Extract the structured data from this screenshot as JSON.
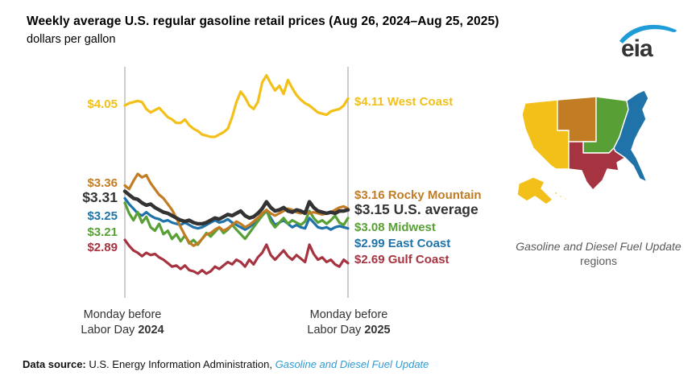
{
  "header": {
    "title": "Weekly average U.S. regular gasoline retail prices (Aug 26, 2024–Aug 25, 2025)",
    "subtitle": "dollars per gallon",
    "logo_text": "eia",
    "logo_swoosh_color": "#1e9cd7",
    "logo_text_color": "#333333"
  },
  "chart_data": {
    "type": "line",
    "title": "Weekly average U.S. regular gasoline retail prices (Aug 26, 2024–Aug 25, 2025)",
    "ylabel": "dollars per gallon",
    "ylim": [
      2.4,
      4.4
    ],
    "grid": false,
    "legend_position": "line-end-labels",
    "x_axis": {
      "left": {
        "line1": "Monday before",
        "line2": "Labor Day",
        "year": "2024"
      },
      "right": {
        "line1": "Monday before",
        "line2": "Labor Day",
        "year": "2025"
      }
    },
    "series": [
      {
        "name": "West Coast",
        "color": "#f2c018",
        "start_label": "$4.05",
        "end_label": "$4.11",
        "emphasis": false,
        "values": [
          4.05,
          4.07,
          4.08,
          4.09,
          4.08,
          4.02,
          3.99,
          4.01,
          4.03,
          3.99,
          3.95,
          3.93,
          3.9,
          3.9,
          3.93,
          3.88,
          3.85,
          3.83,
          3.8,
          3.79,
          3.78,
          3.78,
          3.8,
          3.82,
          3.85,
          3.95,
          4.08,
          4.17,
          4.12,
          4.05,
          4.02,
          4.08,
          4.25,
          4.31,
          4.24,
          4.18,
          4.22,
          4.15,
          4.27,
          4.2,
          4.14,
          4.1,
          4.07,
          4.05,
          4.02,
          3.99,
          3.98,
          3.97,
          4.0,
          4.01,
          4.02,
          4.05,
          4.11
        ]
      },
      {
        "name": "Rocky Mountain",
        "color": "#c17c24",
        "start_label": "$3.36",
        "end_label": "$3.16",
        "emphasis": false,
        "values": [
          3.36,
          3.33,
          3.4,
          3.46,
          3.43,
          3.45,
          3.38,
          3.33,
          3.28,
          3.25,
          3.2,
          3.15,
          3.08,
          3.0,
          2.93,
          2.87,
          2.84,
          2.86,
          2.9,
          2.94,
          2.95,
          2.98,
          3.0,
          2.97,
          2.99,
          3.02,
          3.05,
          3.03,
          3.0,
          3.02,
          3.05,
          3.08,
          3.12,
          3.15,
          3.12,
          3.1,
          3.12,
          3.14,
          3.16,
          3.15,
          3.13,
          3.12,
          3.14,
          3.12,
          3.13,
          3.12,
          3.11,
          3.12,
          3.13,
          3.15,
          3.17,
          3.18,
          3.16
        ]
      },
      {
        "name": "U.S. average",
        "color": "#333333",
        "start_label": "$3.31",
        "end_label": "$3.15",
        "emphasis": true,
        "values": [
          3.31,
          3.28,
          3.25,
          3.24,
          3.21,
          3.19,
          3.2,
          3.17,
          3.15,
          3.13,
          3.12,
          3.1,
          3.08,
          3.06,
          3.05,
          3.06,
          3.04,
          3.03,
          3.03,
          3.04,
          3.06,
          3.08,
          3.07,
          3.09,
          3.11,
          3.1,
          3.12,
          3.14,
          3.1,
          3.08,
          3.09,
          3.12,
          3.16,
          3.22,
          3.17,
          3.14,
          3.15,
          3.17,
          3.14,
          3.13,
          3.15,
          3.14,
          3.12,
          3.22,
          3.17,
          3.14,
          3.13,
          3.12,
          3.13,
          3.12,
          3.14,
          3.14,
          3.15
        ]
      },
      {
        "name": "Midwest",
        "color": "#58a036",
        "start_label": "$3.21",
        "end_label": "$3.08",
        "emphasis": false,
        "values": [
          3.21,
          3.12,
          3.06,
          3.13,
          3.04,
          3.09,
          3.0,
          2.97,
          3.03,
          2.94,
          2.97,
          2.9,
          2.94,
          2.88,
          2.93,
          2.86,
          2.89,
          2.85,
          2.9,
          2.95,
          2.92,
          2.96,
          3.0,
          2.95,
          2.98,
          3.02,
          2.98,
          2.94,
          2.9,
          2.95,
          3.0,
          3.05,
          3.1,
          3.15,
          3.05,
          3.0,
          3.04,
          3.08,
          3.03,
          3.06,
          3.04,
          3.02,
          3.05,
          3.14,
          3.08,
          3.04,
          3.06,
          3.03,
          3.06,
          3.1,
          3.04,
          3.02,
          3.08
        ]
      },
      {
        "name": "East Coast",
        "color": "#1f73a8",
        "start_label": "$3.25",
        "end_label": "$2.99",
        "emphasis": false,
        "values": [
          3.25,
          3.2,
          3.16,
          3.12,
          3.1,
          3.13,
          3.1,
          3.08,
          3.07,
          3.05,
          3.06,
          3.04,
          3.03,
          3.02,
          3.04,
          3.02,
          3.0,
          2.99,
          3.0,
          3.02,
          3.04,
          3.06,
          3.04,
          3.05,
          3.07,
          3.04,
          3.02,
          3.0,
          2.98,
          3.0,
          3.03,
          3.06,
          3.1,
          3.14,
          3.08,
          3.02,
          3.04,
          3.06,
          3.03,
          3.0,
          3.02,
          3.0,
          2.99,
          3.08,
          3.04,
          3.0,
          2.99,
          3.0,
          2.98,
          3.0,
          3.01,
          3.0,
          2.99
        ]
      },
      {
        "name": "Gulf Coast",
        "color": "#a53340",
        "start_label": "$2.89",
        "end_label": "$2.69",
        "emphasis": false,
        "values": [
          2.89,
          2.84,
          2.8,
          2.78,
          2.75,
          2.78,
          2.76,
          2.77,
          2.74,
          2.72,
          2.69,
          2.66,
          2.67,
          2.64,
          2.67,
          2.63,
          2.62,
          2.6,
          2.63,
          2.6,
          2.62,
          2.66,
          2.64,
          2.67,
          2.7,
          2.68,
          2.72,
          2.7,
          2.66,
          2.72,
          2.68,
          2.74,
          2.78,
          2.85,
          2.76,
          2.72,
          2.76,
          2.8,
          2.75,
          2.72,
          2.76,
          2.73,
          2.7,
          2.85,
          2.77,
          2.72,
          2.74,
          2.7,
          2.72,
          2.68,
          2.66,
          2.72,
          2.69
        ]
      }
    ]
  },
  "map": {
    "caption_italic": "Gasoline and Diesel Fuel Update",
    "caption_regular": "regions",
    "regions": [
      {
        "name": "West Coast",
        "color": "#f2c018"
      },
      {
        "name": "Rocky Mountain",
        "color": "#c17c24"
      },
      {
        "name": "Midwest",
        "color": "#58a036"
      },
      {
        "name": "Gulf Coast",
        "color": "#a53340"
      },
      {
        "name": "East Coast",
        "color": "#1f73a8"
      }
    ]
  },
  "footer": {
    "label": "Data source:",
    "text": "U.S. Energy Information Administration,",
    "link": "Gasoline and Diesel Fuel Update",
    "link_color": "#2f9bd3"
  }
}
